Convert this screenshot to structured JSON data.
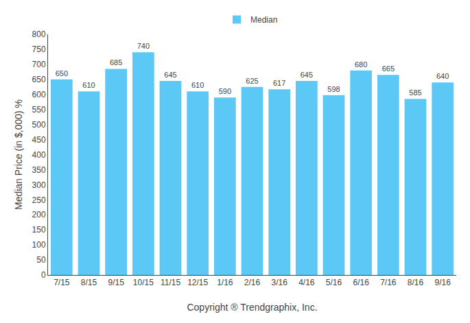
{
  "chart_data": {
    "type": "bar",
    "categories": [
      "7/15",
      "8/15",
      "9/15",
      "10/15",
      "11/15",
      "12/15",
      "1/16",
      "2/16",
      "3/16",
      "4/16",
      "5/16",
      "6/16",
      "7/16",
      "8/16",
      "9/16"
    ],
    "series": [
      {
        "name": "Median",
        "color": "#5BC8F5",
        "values": [
          650,
          610,
          685,
          740,
          645,
          610,
          590,
          625,
          617,
          645,
          598,
          680,
          665,
          585,
          640
        ]
      }
    ],
    "ylabel": "Median Price (in $,000) %",
    "xlabel": "Copyright ® Trendgraphix, Inc.",
    "ylim": [
      0,
      800
    ],
    "yticks": [
      0,
      50,
      100,
      150,
      200,
      250,
      300,
      350,
      400,
      450,
      500,
      550,
      600,
      650,
      700,
      750,
      800
    ],
    "grid": false,
    "legend": "top",
    "data_labels": true
  }
}
